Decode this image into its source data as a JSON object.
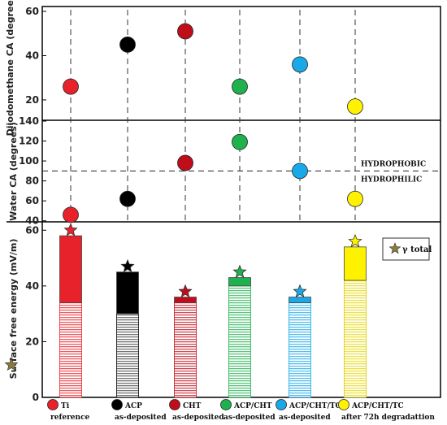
{
  "chart_data": [
    {
      "type": "scatter",
      "ylabel": "Diiodomethane CA (degrees)",
      "yticks": [
        20,
        40,
        60
      ],
      "ylim": [
        13,
        60
      ],
      "categories": [
        "Ti reference",
        "ACP as-deposited",
        "CHT as-deposited",
        "ACP/CHT as-deposited",
        "ACP/CHT/TC as-deposited",
        "ACP/CHT/TC after 72h degradattion"
      ],
      "values": [
        26,
        45,
        51,
        26,
        36,
        17
      ]
    },
    {
      "type": "scatter",
      "ylabel": "Water CA (degrees)",
      "yticks": [
        40,
        60,
        80,
        100,
        120,
        140
      ],
      "ylim": [
        30,
        140
      ],
      "categories": [
        "Ti reference",
        "ACP as-deposited",
        "CHT as-deposited",
        "ACP/CHT as-deposited",
        "ACP/CHT/TC as-deposited",
        "ACP/CHT/TC after 72h degradattion"
      ],
      "values": [
        46,
        62,
        98,
        119,
        90,
        62
      ],
      "reference_line": 90,
      "annotations": [
        "HYDROPHOBIC",
        "HYDROPHILIC"
      ]
    },
    {
      "type": "bar",
      "ylabel": "Surface free energy (mV/m)",
      "yticks": [
        0,
        20,
        40,
        60
      ],
      "ylim": [
        0,
        63
      ],
      "categories": [
        "Ti reference",
        "ACP as-deposited",
        "CHT as-deposited",
        "ACP/CHT as-deposited",
        "ACP/CHT/TC as-deposited",
        "ACP/CHT/TC after 72h degradattion"
      ],
      "series": [
        {
          "values": [
            34,
            30,
            34,
            40,
            34,
            42
          ]
        },
        {
          "values": [
            24,
            15,
            2,
            3,
            2,
            12
          ]
        }
      ],
      "total_star_values": [
        60,
        47,
        38,
        45,
        38,
        56
      ],
      "star_legend": "γ total"
    }
  ],
  "legend": [
    {
      "line1": "Ti",
      "line2": "reference",
      "color": "#e8222a"
    },
    {
      "line1": "ACP",
      "line2": "as-deposited",
      "color": "#000000"
    },
    {
      "line1": "CHT",
      "line2": "as-deposited",
      "color": "#c00d1b"
    },
    {
      "line1": "ACP/CHT",
      "line2": "as-deposited",
      "color": "#1fb14d"
    },
    {
      "line1": "ACP/CHT/TC",
      "line2": "as-deposited",
      "color": "#1aa9e8"
    },
    {
      "line1": "ACP/CHT/TC",
      "line2": "after 72h degradattion",
      "color": "#fff200"
    }
  ],
  "colors": {
    "ti": "#e8222a",
    "acp": "#000000",
    "cht": "#c00d1b",
    "acp_cht": "#1fb14d",
    "acp_cht_tc": "#1aa9e8",
    "acp_cht_tc_72h": "#fff200",
    "star_legend": "#8b7a3a"
  }
}
